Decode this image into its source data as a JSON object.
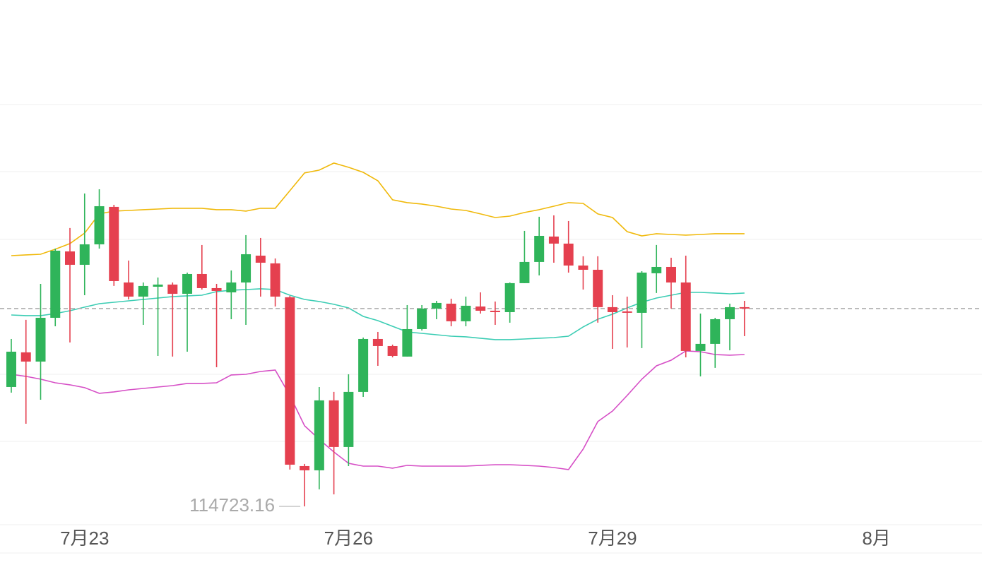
{
  "chart_data": {
    "type": "candlestick",
    "xlim": [
      -0.77,
      66.2
    ],
    "ylim": [
      114450,
      122252
    ],
    "xticks": [
      {
        "value": 5,
        "label": "7月23"
      },
      {
        "value": 23,
        "label": "7月26"
      },
      {
        "value": 41,
        "label": "7月29"
      },
      {
        "value": 59,
        "label": "8月"
      }
    ],
    "up_color": "#2fb45a",
    "down_color": "#e5404f",
    "open": [
      116498,
      117013,
      116876,
      117527,
      118514,
      118315,
      118619,
      119176,
      118052,
      117842,
      117989,
      118021,
      117884,
      118178,
      117968,
      117905,
      118052,
      118451,
      118336,
      117832,
      115322,
      115259,
      116299,
      115606,
      116425,
      117212,
      117107,
      116950,
      117359,
      117664,
      117737,
      117475,
      117695,
      117632,
      117611,
      118042,
      118357,
      118735,
      118630,
      118304,
      118241,
      117685,
      117622,
      117601,
      118189,
      118283,
      118052,
      117034,
      117139,
      117506,
      117685
    ],
    "high": [
      117212,
      117496,
      118031,
      118556,
      118861,
      119375,
      119438,
      119207,
      118378,
      118052,
      118126,
      118052,
      118199,
      118609,
      118031,
      118231,
      118756,
      118714,
      118409,
      117853,
      115354,
      116498,
      116425,
      116687,
      117233,
      117317,
      117128,
      117716,
      117716,
      117779,
      117811,
      117842,
      117905,
      117769,
      118052,
      118819,
      119029,
      119050,
      118966,
      118441,
      118441,
      117863,
      117842,
      118220,
      118609,
      118420,
      118451,
      117590,
      117527,
      117737,
      117779
    ],
    "low": [
      116414,
      115952,
      116309,
      117401,
      117160,
      117863,
      118556,
      118000,
      117800,
      117422,
      116960,
      116950,
      117023,
      117947,
      116792,
      117506,
      117422,
      117842,
      117695,
      115270,
      114723.16,
      114976,
      114902,
      115322,
      116351,
      116813,
      116939,
      116950,
      117338,
      117506,
      117401,
      117401,
      117590,
      117422,
      117454,
      118042,
      118157,
      118346,
      118199,
      117947,
      117454,
      117065,
      117086,
      117076,
      117895,
      117664,
      116939,
      116656,
      116782,
      117044,
      117254
    ],
    "close": [
      117023,
      116876,
      117527,
      118525,
      118315,
      118619,
      119186,
      118073,
      117842,
      118000,
      118021,
      117884,
      118178,
      117968,
      117926,
      118052,
      118472,
      118346,
      117842,
      115343,
      115259,
      116299,
      115606,
      116425,
      117212,
      117107,
      116960,
      117359,
      117664,
      117748,
      117475,
      117706,
      117632,
      117611,
      118042,
      118357,
      118745,
      118630,
      118304,
      118241,
      117685,
      117611,
      117601,
      118199,
      118283,
      118052,
      117034,
      117139,
      117506,
      117685,
      117664
    ],
    "bands": [
      {
        "color": "#f0b90b",
        "values": [
          118451,
          118462,
          118472,
          118546,
          118630,
          118787,
          119071,
          119113,
          119123,
          119134,
          119144,
          119155,
          119155,
          119155,
          119134,
          119134,
          119113,
          119155,
          119155,
          119417,
          119680,
          119722,
          119827,
          119764,
          119690,
          119564,
          119281,
          119239,
          119218,
          119186,
          119144,
          119123,
          119071,
          119018,
          119039,
          119092,
          119134,
          119186,
          119239,
          119228,
          119071,
          119018,
          118808,
          118745,
          118777,
          118766,
          118756,
          118766,
          118777,
          118777,
          118777
        ]
      },
      {
        "color": "#3ccdb4",
        "values": [
          117569,
          117559,
          117559,
          117590,
          117632,
          117685,
          117737,
          117758,
          117779,
          117800,
          117821,
          117842,
          117853,
          117863,
          117916,
          117937,
          117947,
          117958,
          117947,
          117863,
          117800,
          117769,
          117727,
          117674,
          117548,
          117485,
          117401,
          117317,
          117296,
          117275,
          117254,
          117244,
          117223,
          117202,
          117202,
          117212,
          117223,
          117233,
          117254,
          117391,
          117506,
          117580,
          117674,
          117758,
          117821,
          117863,
          117905,
          117905,
          117895,
          117884,
          117895
        ]
      },
      {
        "color": "#d64fc6",
        "values": [
          116687,
          116656,
          116614,
          116561,
          116530,
          116488,
          116404,
          116425,
          116456,
          116477,
          116498,
          116519,
          116551,
          116551,
          116561,
          116677,
          116687,
          116729,
          116750,
          116372,
          115921,
          115721,
          115532,
          115364,
          115322,
          115322,
          115291,
          115333,
          115322,
          115322,
          115322,
          115322,
          115333,
          115343,
          115343,
          115333,
          115322,
          115301,
          115270,
          115574,
          115984,
          116141,
          116372,
          116614,
          116813,
          116897,
          117034,
          117023,
          116981,
          116971,
          116981
        ]
      }
    ]
  }
}
